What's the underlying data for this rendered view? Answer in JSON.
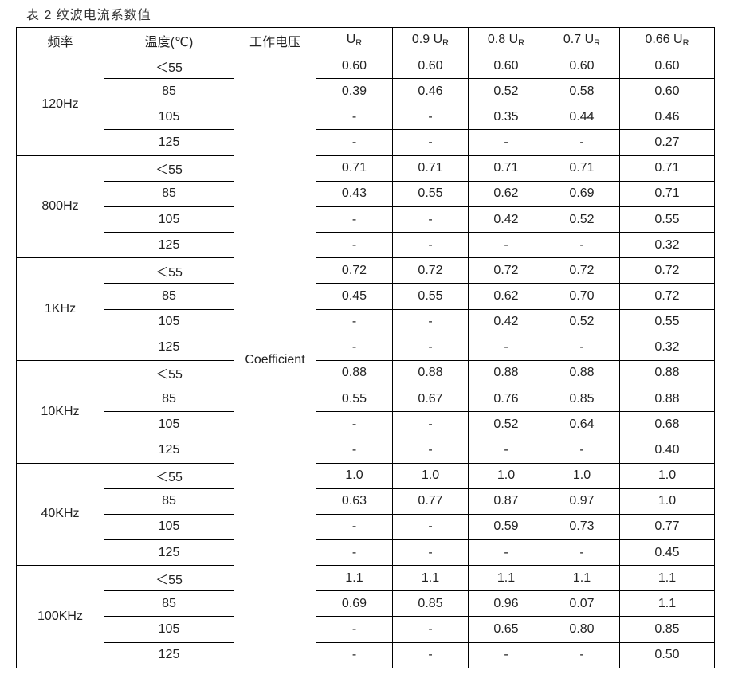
{
  "title": "表 2 纹波电流系数值",
  "headers": {
    "frequency": "频率",
    "temperature": "温度(℃)",
    "voltage": "工作电压",
    "voltage_cols": [
      {
        "prefix": "",
        "unit": "U",
        "sub": "R"
      },
      {
        "prefix": "0.9 ",
        "unit": "U",
        "sub": "R"
      },
      {
        "prefix": "0.8 ",
        "unit": "U",
        "sub": "R"
      },
      {
        "prefix": "0.7 ",
        "unit": "U",
        "sub": "R"
      },
      {
        "prefix": "0.66 ",
        "unit": "U",
        "sub": "R"
      }
    ]
  },
  "coefficient_label": "Coefficient",
  "groups": [
    {
      "frequency": "120Hz",
      "rows": [
        {
          "temp": "＜55",
          "values": [
            "0.60",
            "0.60",
            "0.60",
            "0.60",
            "0.60"
          ]
        },
        {
          "temp": "85",
          "values": [
            "0.39",
            "0.46",
            "0.52",
            "0.58",
            "0.60"
          ]
        },
        {
          "temp": "105",
          "values": [
            "-",
            "-",
            "0.35",
            "0.44",
            "0.46"
          ]
        },
        {
          "temp": "125",
          "values": [
            "-",
            "-",
            "-",
            "-",
            "0.27"
          ]
        }
      ]
    },
    {
      "frequency": "800Hz",
      "rows": [
        {
          "temp": "＜55",
          "values": [
            "0.71",
            "0.71",
            "0.71",
            "0.71",
            "0.71"
          ]
        },
        {
          "temp": "85",
          "values": [
            "0.43",
            "0.55",
            "0.62",
            "0.69",
            "0.71"
          ]
        },
        {
          "temp": "105",
          "values": [
            "-",
            "-",
            "0.42",
            "0.52",
            "0.55"
          ]
        },
        {
          "temp": "125",
          "values": [
            "-",
            "-",
            "-",
            "-",
            "0.32"
          ]
        }
      ]
    },
    {
      "frequency": "1KHz",
      "rows": [
        {
          "temp": "＜55",
          "values": [
            "0.72",
            "0.72",
            "0.72",
            "0.72",
            "0.72"
          ]
        },
        {
          "temp": "85",
          "values": [
            "0.45",
            "0.55",
            "0.62",
            "0.70",
            "0.72"
          ]
        },
        {
          "temp": "105",
          "values": [
            "-",
            "-",
            "0.42",
            "0.52",
            "0.55"
          ]
        },
        {
          "temp": "125",
          "values": [
            "-",
            "-",
            "-",
            "-",
            "0.32"
          ]
        }
      ]
    },
    {
      "frequency": "10KHz",
      "rows": [
        {
          "temp": "＜55",
          "values": [
            "0.88",
            "0.88",
            "0.88",
            "0.88",
            "0.88"
          ]
        },
        {
          "temp": "85",
          "values": [
            "0.55",
            "0.67",
            "0.76",
            "0.85",
            "0.88"
          ]
        },
        {
          "temp": "105",
          "values": [
            "-",
            "-",
            "0.52",
            "0.64",
            "0.68"
          ]
        },
        {
          "temp": "125",
          "values": [
            "-",
            "-",
            "-",
            "-",
            "0.40"
          ]
        }
      ]
    },
    {
      "frequency": "40KHz",
      "rows": [
        {
          "temp": "＜55",
          "values": [
            "1.0",
            "1.0",
            "1.0",
            "1.0",
            "1.0"
          ]
        },
        {
          "temp": "85",
          "values": [
            "0.63",
            "0.77",
            "0.87",
            "0.97",
            "1.0"
          ]
        },
        {
          "temp": "105",
          "values": [
            "-",
            "-",
            "0.59",
            "0.73",
            "0.77"
          ]
        },
        {
          "temp": "125",
          "values": [
            "-",
            "-",
            "-",
            "-",
            "0.45"
          ]
        }
      ]
    },
    {
      "frequency": "100KHz",
      "rows": [
        {
          "temp": "＜55",
          "values": [
            "1.1",
            "1.1",
            "1.1",
            "1.1",
            "1.1"
          ]
        },
        {
          "temp": "85",
          "values": [
            "0.69",
            "0.85",
            "0.96",
            "0.07",
            "1.1"
          ]
        },
        {
          "temp": "105",
          "values": [
            "-",
            "-",
            "0.65",
            "0.80",
            "0.85"
          ]
        },
        {
          "temp": "125",
          "values": [
            "-",
            "-",
            "-",
            "-",
            "0.50"
          ]
        }
      ]
    }
  ]
}
